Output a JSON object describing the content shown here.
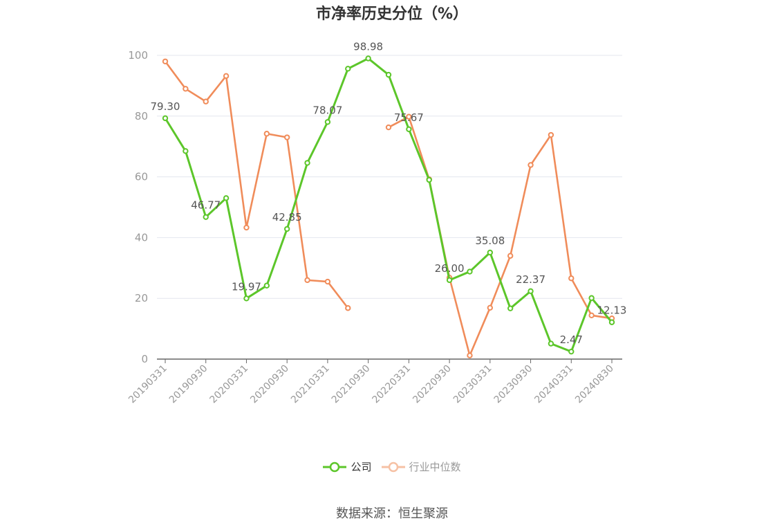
{
  "title": "市净率历史分位（%）",
  "source": "数据来源：恒生聚源",
  "legend": {
    "company": "公司",
    "industry": "行业中位数"
  },
  "colors": {
    "company": "#5cc62a",
    "industry": "#f08c5a",
    "industry_legend_faded": "#f6c1a4",
    "axis": "#666666",
    "grid": "#e3e6ee",
    "tick_label": "#999999",
    "data_label": "#555555"
  },
  "chart_data": {
    "type": "line",
    "title": "市净率历史分位（%）",
    "xlabel": "",
    "ylabel": "",
    "ylim": [
      0,
      100
    ],
    "y_ticks": [
      "0",
      "20",
      "40",
      "60",
      "80",
      "100"
    ],
    "grid": true,
    "legend_position": "bottom",
    "x_tick_labels": [
      "20190331",
      "20190930",
      "20200331",
      "20200930",
      "20210331",
      "20210930",
      "20220331",
      "20220930",
      "20230331",
      "20230930",
      "20240331",
      "20240830"
    ],
    "x_tick_index": [
      0,
      2,
      4,
      6,
      8,
      10,
      12,
      14,
      16,
      18,
      20,
      22
    ],
    "series": [
      {
        "name": "公司",
        "key": "company",
        "values": [
          79.3,
          68.5,
          46.77,
          53.0,
          19.97,
          24.2,
          42.85,
          64.6,
          78.07,
          95.6,
          98.98,
          93.6,
          75.67,
          59.0,
          26.0,
          28.8,
          35.08,
          16.7,
          22.37,
          5.1,
          2.47,
          20.1,
          12.13
        ],
        "labels": [
          "79.30",
          "",
          "46.77",
          "",
          "19.97",
          "",
          "42.85",
          "",
          "78.07",
          "",
          "98.98",
          "",
          "75.67",
          "",
          "26.00",
          "",
          "35.08",
          "",
          "22.37",
          "",
          "2.47",
          "",
          "12.13"
        ]
      },
      {
        "name": "行业中位数",
        "key": "industry",
        "values": [
          98.0,
          89.0,
          84.8,
          93.2,
          43.3,
          74.2,
          73.0,
          26.0,
          25.5,
          16.8,
          null,
          76.3,
          79.8,
          59.2,
          26.8,
          1.2,
          16.9,
          34.0,
          63.9,
          73.8,
          26.6,
          14.4,
          13.4
        ],
        "labels": []
      }
    ]
  }
}
